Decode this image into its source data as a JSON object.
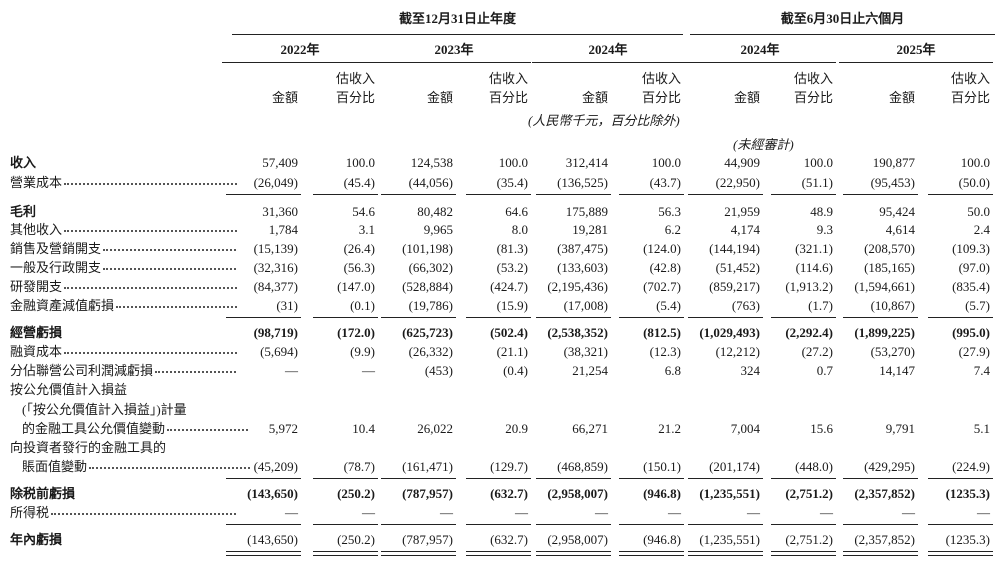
{
  "header": {
    "groups": [
      "截至12月31日止年度",
      "截至6月30日止六個月"
    ],
    "years": [
      "2022年",
      "2023年",
      "2024年",
      "2024年",
      "2025年"
    ],
    "amount_label": "金額",
    "pct_label": [
      "估收入",
      "百分比"
    ],
    "unit_note": "(人民幣千元，百分比除外)",
    "unaudited_note": "(未經審計)"
  },
  "table": {
    "rows": [
      {
        "label": "收入",
        "bold": true,
        "values": [
          "57,409",
          "100.0",
          "124,538",
          "100.0",
          "312,414",
          "100.0",
          "44,909",
          "100.0",
          "190,877",
          "100.0"
        ]
      },
      {
        "label": "營業成本",
        "values": [
          "(26,049)",
          "(45.4)",
          "(44,056)",
          "(35.4)",
          "(136,525)",
          "(43.7)",
          "(22,950)",
          "(51.1)",
          "(95,453)",
          "(50.0)"
        ],
        "rule_after": "single"
      },
      {
        "label": "毛利",
        "bold": true,
        "values": [
          "31,360",
          "54.6",
          "80,482",
          "64.6",
          "175,889",
          "56.3",
          "21,959",
          "48.9",
          "95,424",
          "50.0"
        ]
      },
      {
        "label": "其他收入",
        "values": [
          "1,784",
          "3.1",
          "9,965",
          "8.0",
          "19,281",
          "6.2",
          "4,174",
          "9.3",
          "4,614",
          "2.4"
        ]
      },
      {
        "label": "銷售及營銷開支",
        "values": [
          "(15,139)",
          "(26.4)",
          "(101,198)",
          "(81.3)",
          "(387,475)",
          "(124.0)",
          "(144,194)",
          "(321.1)",
          "(208,570)",
          "(109.3)"
        ]
      },
      {
        "label": "一般及行政開支",
        "values": [
          "(32,316)",
          "(56.3)",
          "(66,302)",
          "(53.2)",
          "(133,603)",
          "(42.8)",
          "(51,452)",
          "(114.6)",
          "(185,165)",
          "(97.0)"
        ]
      },
      {
        "label": "研發開支",
        "values": [
          "(84,377)",
          "(147.0)",
          "(528,884)",
          "(424.7)",
          "(2,195,436)",
          "(702.7)",
          "(859,217)",
          "(1,913.2)",
          "(1,594,661)",
          "(835.4)"
        ]
      },
      {
        "label": "金融資產減值虧損",
        "values": [
          "(31)",
          "(0.1)",
          "(19,786)",
          "(15.9)",
          "(17,008)",
          "(5.4)",
          "(763)",
          "(1.7)",
          "(10,867)",
          "(5.7)"
        ],
        "rule_after": "single"
      },
      {
        "label": "經營虧損",
        "bold": true,
        "bold_values": true,
        "values": [
          "(98,719)",
          "(172.0)",
          "(625,723)",
          "(502.4)",
          "(2,538,352)",
          "(812.5)",
          "(1,029,493)",
          "(2,292.4)",
          "(1,899,225)",
          "(995.0)"
        ]
      },
      {
        "label": "融資成本",
        "values": [
          "(5,694)",
          "(9.9)",
          "(26,332)",
          "(21.1)",
          "(38,321)",
          "(12.3)",
          "(12,212)",
          "(27.2)",
          "(53,270)",
          "(27.9)"
        ]
      },
      {
        "label": "分佔聯營公司利潤減虧損",
        "values": [
          "—",
          "—",
          "(453)",
          "(0.4)",
          "21,254",
          "6.8",
          "324",
          "0.7",
          "14,147",
          "7.4"
        ]
      },
      {
        "label": "按公允價值計入損益"
      },
      {
        "label": "(「按公允價值計入損益」)計量",
        "indent": true
      },
      {
        "label": "的金融工具公允價值變動",
        "indent": true,
        "values": [
          "5,972",
          "10.4",
          "26,022",
          "20.9",
          "66,271",
          "21.2",
          "7,004",
          "15.6",
          "9,791",
          "5.1"
        ]
      },
      {
        "label": "向投資者發行的金融工具的"
      },
      {
        "label": "賬面值變動",
        "indent": true,
        "values": [
          "(45,209)",
          "(78.7)",
          "(161,471)",
          "(129.7)",
          "(468,859)",
          "(150.1)",
          "(201,174)",
          "(448.0)",
          "(429,295)",
          "(224.9)"
        ],
        "rule_after": "single"
      },
      {
        "label": "除税前虧損",
        "bold": true,
        "bold_values": true,
        "values": [
          "(143,650)",
          "(250.2)",
          "(787,957)",
          "(632.7)",
          "(2,958,007)",
          "(946.8)",
          "(1,235,551)",
          "(2,751.2)",
          "(2,357,852)",
          "(1235.3)"
        ]
      },
      {
        "label": "所得税",
        "values": [
          "—",
          "—",
          "—",
          "—",
          "—",
          "—",
          "—",
          "—",
          "—",
          "—"
        ],
        "rule_after": "single"
      },
      {
        "label": "年內虧損",
        "bold": true,
        "values": [
          "(143,650)",
          "(250.2)",
          "(787,957)",
          "(632.7)",
          "(2,958,007)",
          "(946.8)",
          "(1,235,551)",
          "(2,751.2)",
          "(2,357,852)",
          "(1235.3)"
        ],
        "rule_after": "double"
      }
    ]
  }
}
